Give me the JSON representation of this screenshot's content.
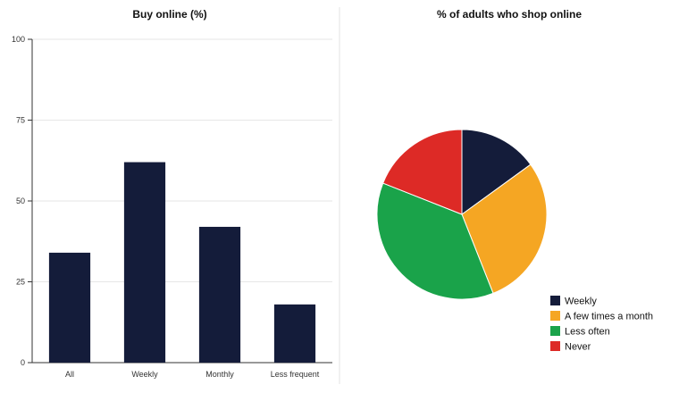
{
  "chart_data": [
    {
      "type": "bar",
      "title": "Buy online (%)",
      "categories": [
        "All",
        "Weekly",
        "Monthly",
        "Less frequent"
      ],
      "values": [
        34,
        62,
        42,
        18
      ],
      "ylim": [
        0,
        100
      ],
      "yticks": [
        0,
        25,
        50,
        75,
        100
      ],
      "grid": true,
      "color": "#141c3a"
    },
    {
      "type": "pie",
      "title": "% of adults who shop online",
      "labels": [
        "Weekly",
        "A few times a month",
        "Less often",
        "Never"
      ],
      "values": [
        15,
        29,
        37,
        19
      ],
      "colors": [
        "#141c3a",
        "#f5a623",
        "#1aa34a",
        "#dd2a26"
      ],
      "legend_position": "bottom-right"
    }
  ]
}
